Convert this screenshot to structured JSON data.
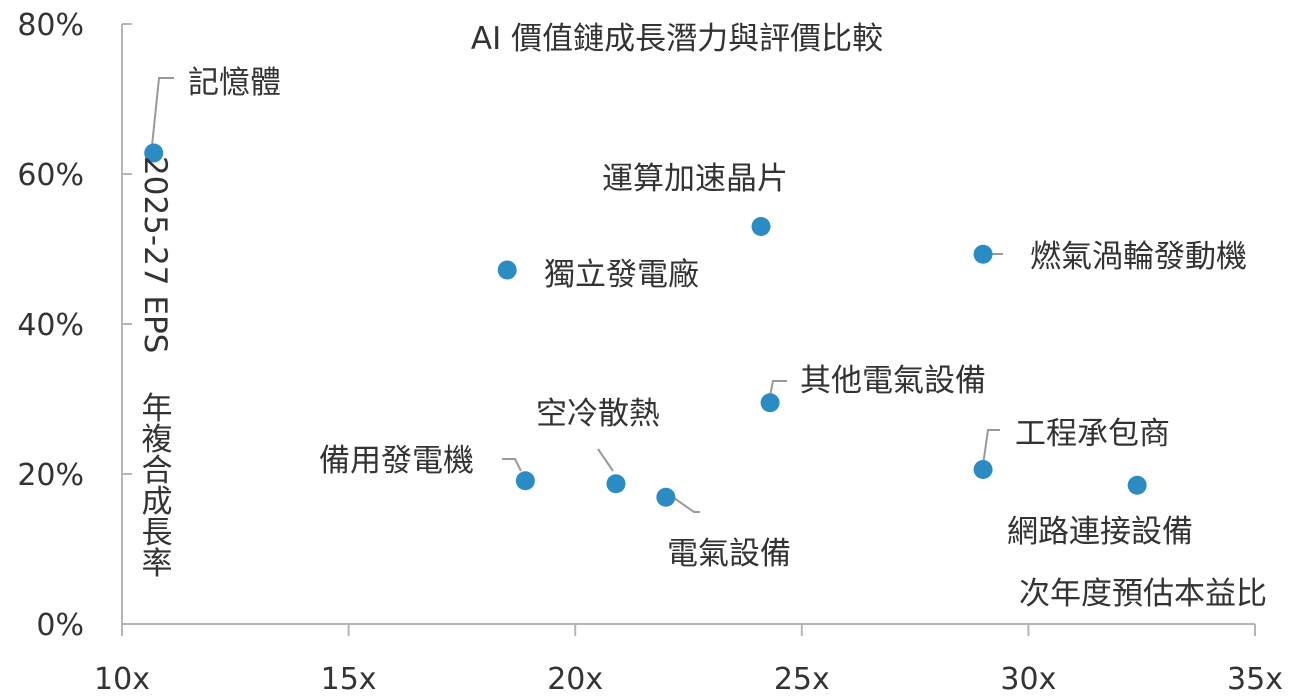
{
  "chart_data": {
    "type": "scatter",
    "title": "AI 價值鏈成長潛力與評價比較",
    "xlabel": "次年度預估本益比",
    "ylabel_parts": [
      "2025-27 EPS",
      "年",
      "複",
      "合",
      "成",
      "長",
      "率"
    ],
    "xlim": [
      10,
      35
    ],
    "ylim": [
      0,
      80
    ],
    "x_ticks": [
      {
        "value": 10,
        "label": "10x"
      },
      {
        "value": 15,
        "label": "15x"
      },
      {
        "value": 20,
        "label": "20x"
      },
      {
        "value": 25,
        "label": "25x"
      },
      {
        "value": 30,
        "label": "30x"
      },
      {
        "value": 35,
        "label": "35x"
      }
    ],
    "y_ticks": [
      {
        "value": 0,
        "label": "0%"
      },
      {
        "value": 20,
        "label": "20%"
      },
      {
        "value": 40,
        "label": "40%"
      },
      {
        "value": 60,
        "label": "60%"
      },
      {
        "value": 80,
        "label": "80%"
      }
    ],
    "grid": false,
    "dot_color": "#2b8cc4",
    "points": [
      {
        "label": "記憶體",
        "x": 10.7,
        "y": 62.8
      },
      {
        "label": "獨立發電廠",
        "x": 18.5,
        "y": 47.2
      },
      {
        "label": "運算加速晶片",
        "x": 24.1,
        "y": 53.0
      },
      {
        "label": "燃氣渦輪發動機",
        "x": 29.0,
        "y": 49.3
      },
      {
        "label": "其他電氣設備",
        "x": 24.3,
        "y": 29.5
      },
      {
        "label": "空冷散熱",
        "x": 20.9,
        "y": 18.7
      },
      {
        "label": "備用發電機",
        "x": 18.9,
        "y": 19.1
      },
      {
        "label": "電氣設備",
        "x": 22.0,
        "y": 16.9
      },
      {
        "label": "工程承包商",
        "x": 29.0,
        "y": 20.6
      },
      {
        "label": "網路連接設備",
        "x": 32.4,
        "y": 18.5
      }
    ]
  }
}
